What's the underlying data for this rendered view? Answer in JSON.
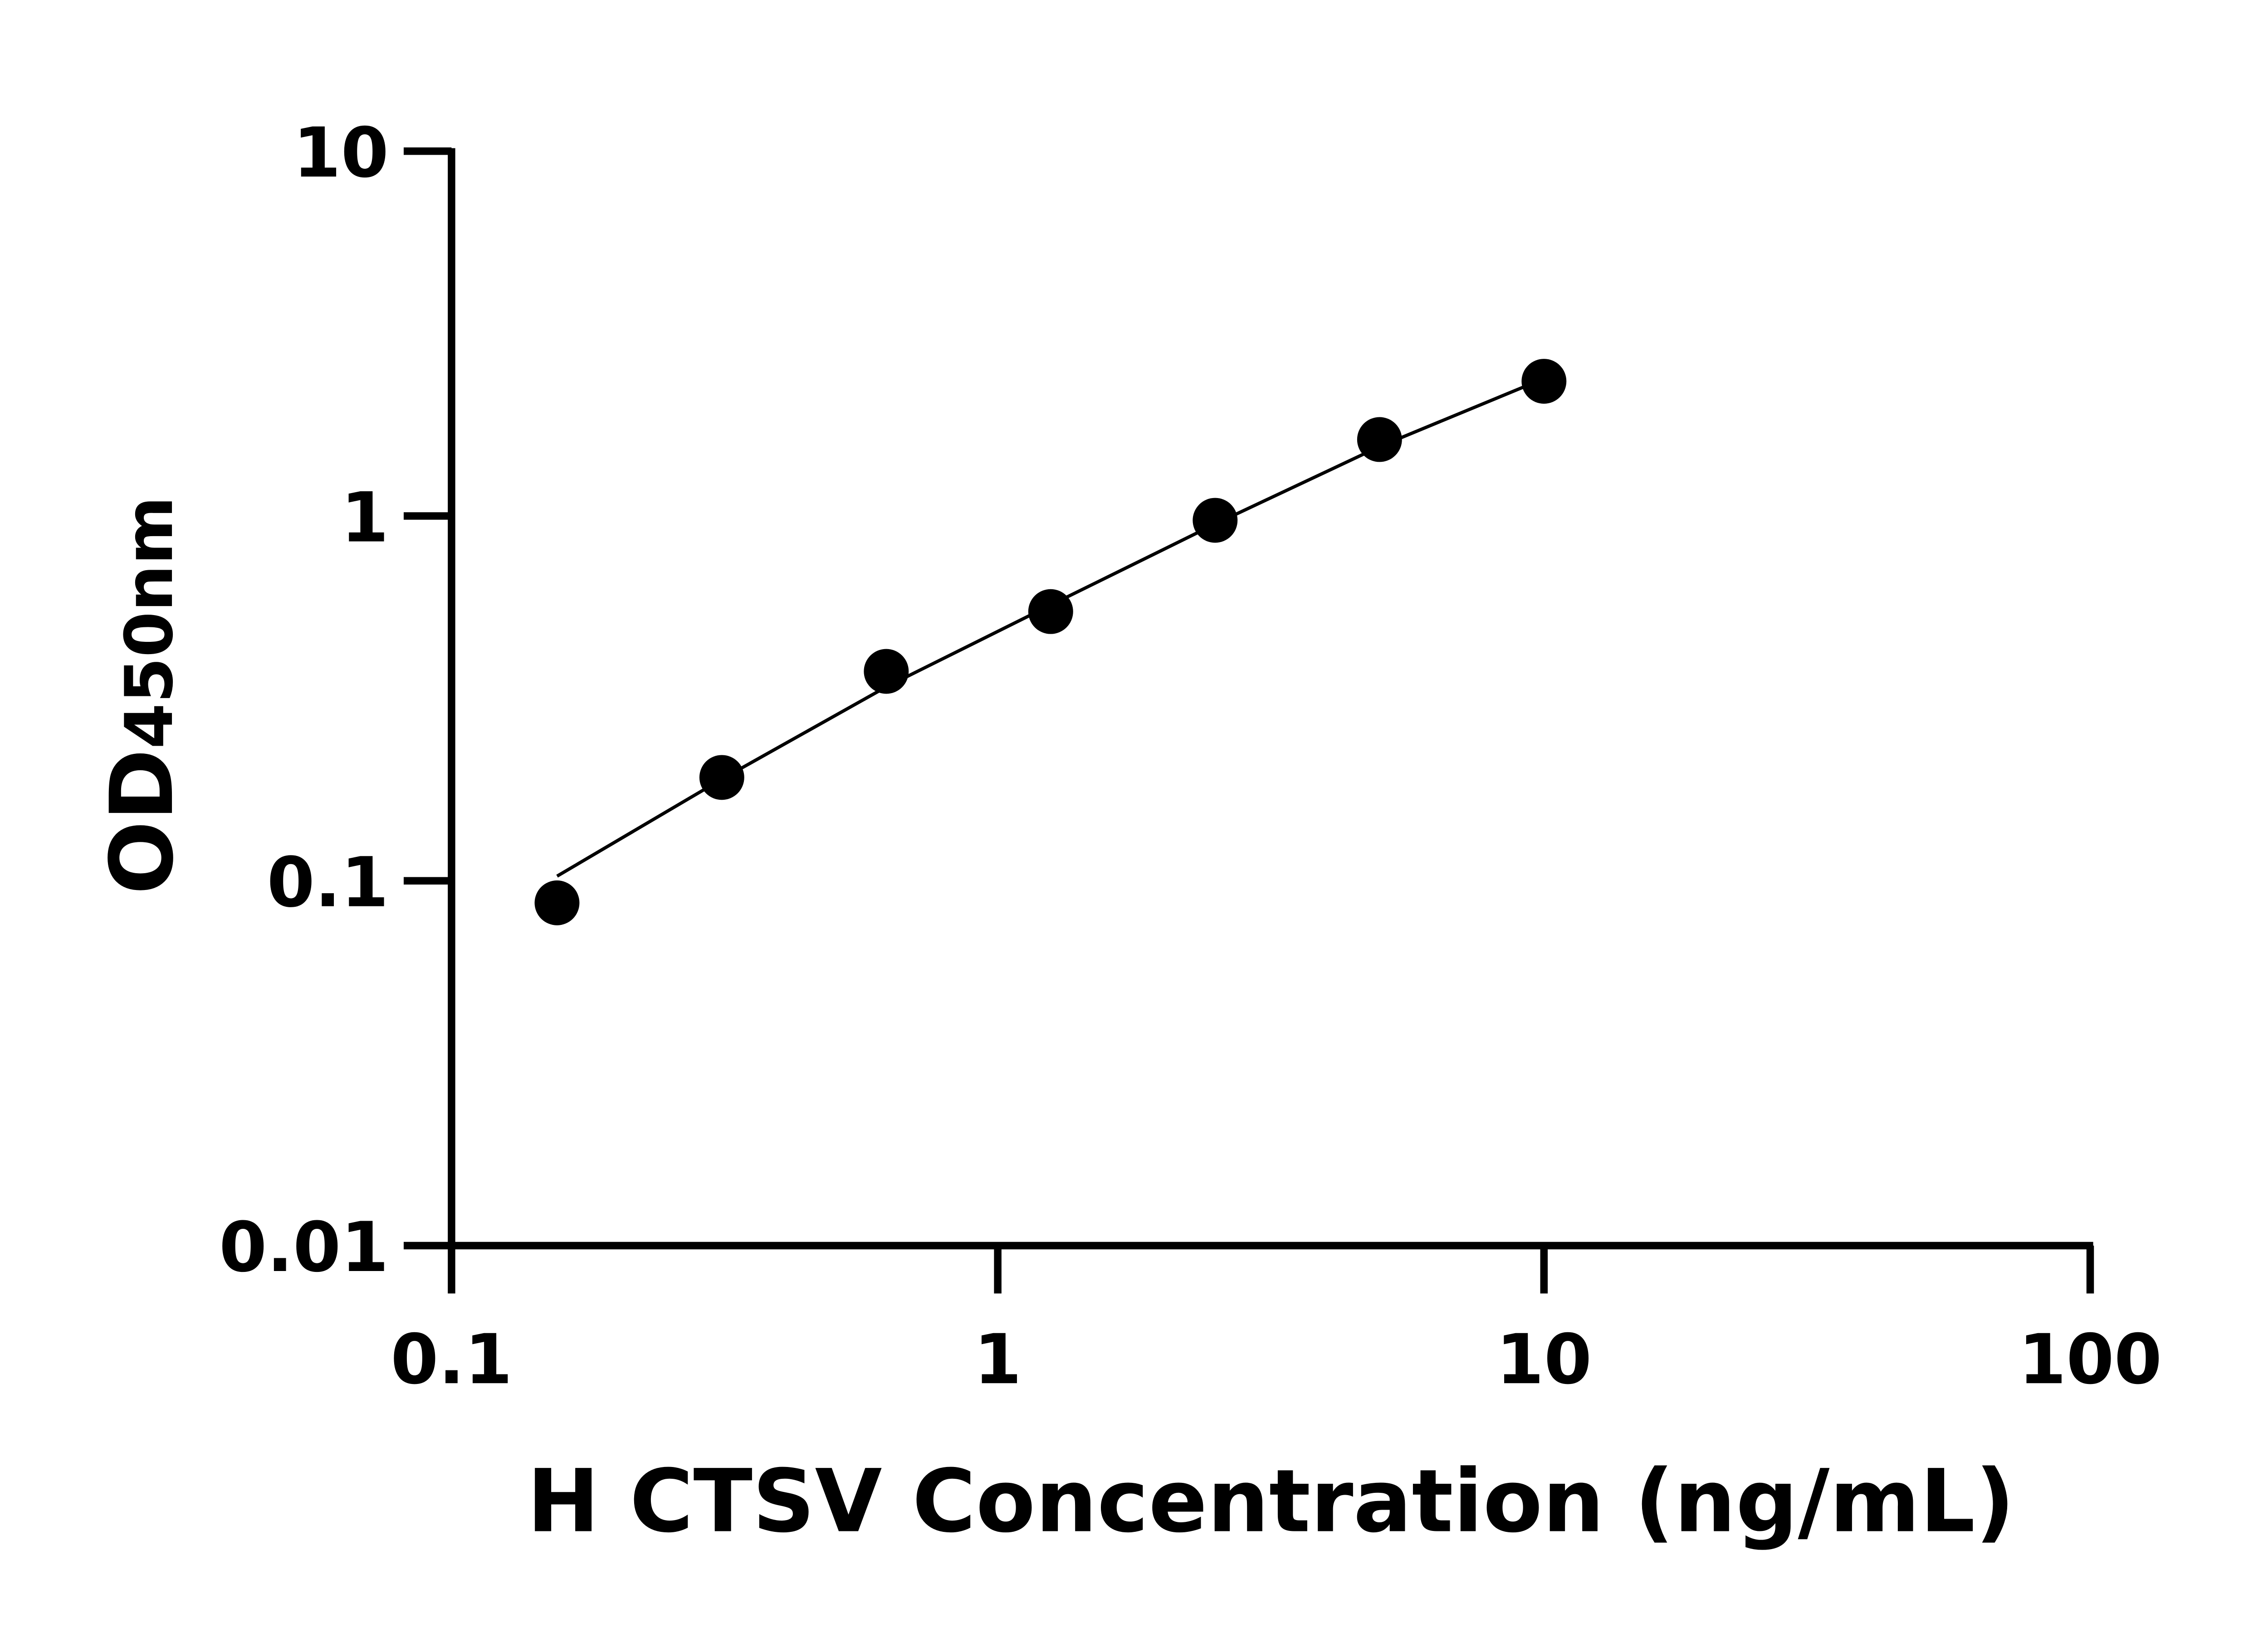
{
  "chart_data": {
    "type": "scatter",
    "title": "",
    "xlabel": "H CTSV Concentration (ng/mL)",
    "ylabel_main": "OD",
    "ylabel_sub": "450nm",
    "x_scale": "log",
    "y_scale": "log",
    "xlim": [
      0.1,
      100
    ],
    "ylim": [
      0.01,
      10
    ],
    "x_ticks": [
      "0.1",
      "1",
      "10",
      "100"
    ],
    "y_ticks": [
      "0.01",
      "0.1",
      "1",
      "10"
    ],
    "grid": false,
    "legend": "none",
    "marker_color": "#000000",
    "series": [
      {
        "x": [
          0.156,
          0.3125,
          0.625,
          1.25,
          2.5,
          5,
          10
        ],
        "y": [
          0.087,
          0.192,
          0.375,
          0.547,
          0.973,
          1.62,
          2.34
        ]
      }
    ],
    "fit_curve": {
      "x": [
        0.156,
        0.3125,
        0.625,
        1.25,
        2.5,
        5,
        10
      ],
      "y": [
        0.103,
        0.19,
        0.34,
        0.57,
        0.95,
        1.55,
        2.38
      ]
    }
  }
}
